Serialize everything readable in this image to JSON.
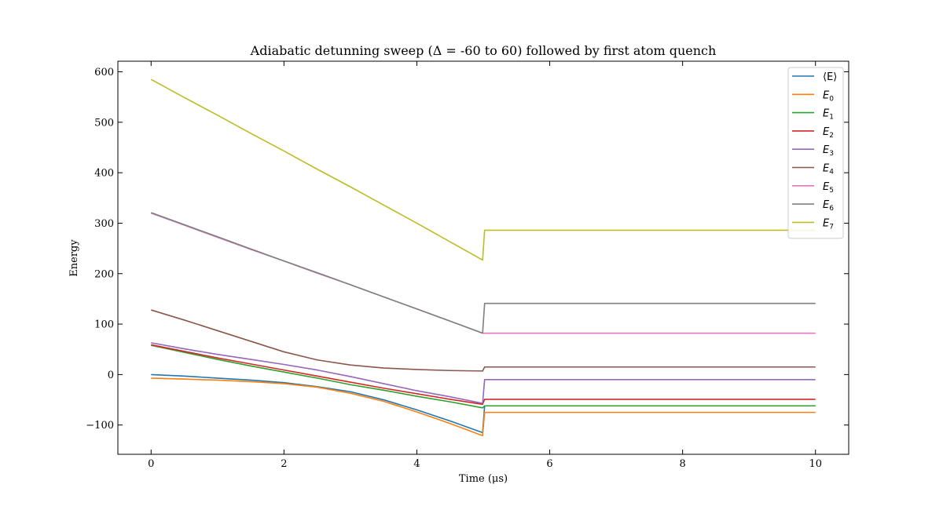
{
  "chart_data": {
    "type": "line",
    "title": "Adiabatic detunning sweep (Δ = -60 to 60) followed by first atom quench",
    "xlabel": "Time (μs)",
    "ylabel": "Energy",
    "xlim": [
      -0.5,
      10.5
    ],
    "ylim": [
      -158,
      621
    ],
    "xticks": [
      0,
      2,
      4,
      6,
      8,
      10
    ],
    "yticks": [
      -100,
      0,
      100,
      200,
      300,
      400,
      500,
      600
    ],
    "xtick_labels": [
      "0",
      "2",
      "4",
      "6",
      "8",
      "10"
    ],
    "ytick_labels": [
      "−100",
      "0",
      "100",
      "200",
      "300",
      "400",
      "500",
      "600"
    ],
    "grid": false,
    "legend_position": "top-right",
    "series": [
      {
        "name": "⟨E⟩",
        "legend_base": "⟨E⟩",
        "legend_sub": "",
        "color": "#1f77b4",
        "x": [
          0,
          0.5,
          1,
          1.5,
          2,
          2.5,
          3,
          3.5,
          4,
          4.5,
          4.99,
          5.02,
          10
        ],
        "y": [
          0,
          -3,
          -7,
          -11,
          -16,
          -24,
          -34,
          -50,
          -70,
          -92,
          -115,
          -62,
          -62
        ]
      },
      {
        "name": "E0",
        "legend_base": "E",
        "legend_sub": "0",
        "color": "#ff7f0e",
        "x": [
          0,
          0.5,
          1,
          1.5,
          2,
          2.5,
          3,
          3.5,
          4,
          4.5,
          4.99,
          5.02,
          10
        ],
        "y": [
          -7,
          -9,
          -11,
          -14,
          -18,
          -25,
          -37,
          -53,
          -74,
          -97,
          -121,
          -75,
          -75
        ]
      },
      {
        "name": "E1",
        "legend_base": "E",
        "legend_sub": "1",
        "color": "#2ca02c",
        "x": [
          0,
          0.5,
          1,
          1.5,
          2,
          2.5,
          3,
          3.5,
          4,
          4.5,
          4.99,
          5.02,
          10
        ],
        "y": [
          58,
          44,
          30,
          17,
          5,
          -7,
          -20,
          -31,
          -43,
          -54,
          -66,
          -62,
          -62
        ]
      },
      {
        "name": "E2",
        "legend_base": "E",
        "legend_sub": "2",
        "color": "#d62728",
        "x": [
          0,
          0.5,
          1,
          1.5,
          2,
          2.5,
          3,
          3.5,
          4,
          4.5,
          4.99,
          5.02,
          10
        ],
        "y": [
          59,
          46,
          33,
          21,
          9,
          -3,
          -15,
          -27,
          -38,
          -49,
          -59,
          -49,
          -49
        ]
      },
      {
        "name": "E3",
        "legend_base": "E",
        "legend_sub": "3",
        "color": "#9467bd",
        "x": [
          0,
          0.5,
          1,
          1.5,
          2,
          2.5,
          3,
          3.5,
          4,
          4.5,
          4.99,
          5.02,
          10
        ],
        "y": [
          63,
          51,
          40,
          30,
          20,
          9,
          -4,
          -18,
          -32,
          -44,
          -57,
          -10,
          -10
        ]
      },
      {
        "name": "E4",
        "legend_base": "E",
        "legend_sub": "4",
        "color": "#8c564b",
        "x": [
          0,
          0.5,
          1,
          1.5,
          2,
          2.5,
          3,
          3.5,
          4,
          4.5,
          4.99,
          5.02,
          10
        ],
        "y": [
          128,
          108,
          87,
          66,
          45,
          29,
          19,
          13,
          10,
          8,
          7,
          15,
          15
        ]
      },
      {
        "name": "E5",
        "legend_base": "E",
        "legend_sub": "5",
        "color": "#e377c2",
        "x": [
          0,
          0.5,
          1,
          1.5,
          2,
          2.5,
          3,
          3.5,
          4,
          4.5,
          4.99,
          5.02,
          10
        ],
        "y": [
          320,
          296,
          272,
          248,
          225,
          201,
          178,
          154,
          130,
          106,
          82,
          82,
          82
        ]
      },
      {
        "name": "E6",
        "legend_base": "E",
        "legend_sub": "6",
        "color": "#7f7f7f",
        "x": [
          0,
          0.5,
          1,
          1.5,
          2,
          2.5,
          3,
          3.5,
          4,
          4.5,
          4.99,
          5.02,
          10
        ],
        "y": [
          321,
          297,
          273,
          249,
          225,
          202,
          178,
          154,
          130,
          106,
          82,
          141,
          141
        ]
      },
      {
        "name": "E7",
        "legend_base": "E",
        "legend_sub": "7",
        "color": "#bcbd22",
        "x": [
          0,
          0.5,
          1,
          1.5,
          2,
          2.5,
          3,
          3.5,
          4,
          4.5,
          4.99,
          5.02,
          10
        ],
        "y": [
          585,
          549,
          514,
          478,
          443,
          407,
          372,
          336,
          300,
          263,
          227,
          286,
          286
        ]
      }
    ]
  }
}
